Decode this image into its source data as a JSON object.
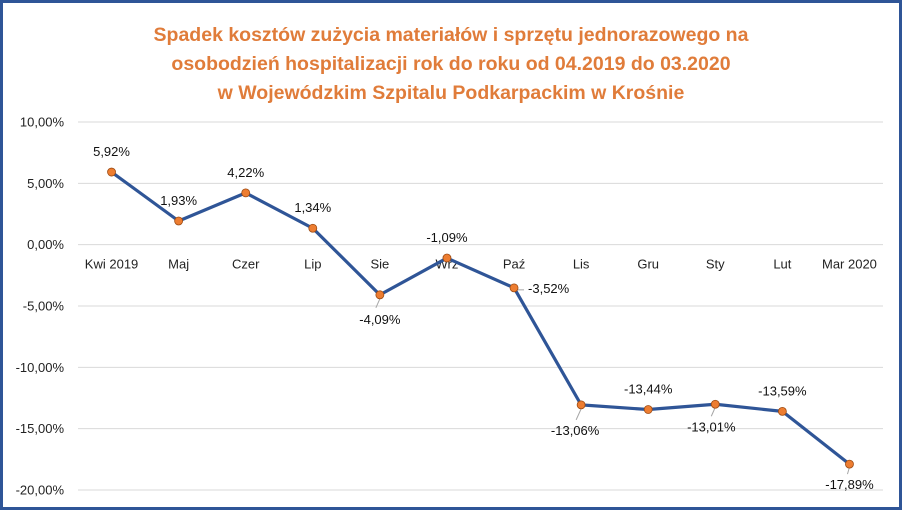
{
  "chart_data": {
    "type": "line",
    "title": [
      "Spadek kosztów zużycia materiałów i sprzętu jednorazowego na",
      "osobodzień hospitalizacji rok do roku od 04.2019 do 03.2020",
      "w Wojewódzkim Szpitalu Podkarpackim w Krośnie"
    ],
    "xlabel": "",
    "ylabel": "",
    "categories": [
      "Kwi 2019",
      "Maj",
      "Czer",
      "Lip",
      "Sie",
      "Wrz",
      "Paź",
      "Lis",
      "Gru",
      "Sty",
      "Lut",
      "Mar 2020"
    ],
    "series": [
      {
        "values": [
          5.92,
          1.93,
          4.22,
          1.34,
          -4.09,
          -1.09,
          -3.52,
          -13.06,
          -13.44,
          -13.01,
          -13.59,
          -17.89
        ],
        "data_labels": [
          "5,92%",
          "1,93%",
          "4,22%",
          "1,34%",
          "-4,09%",
          "-1,09%",
          "-3,52%",
          "-13,06%",
          "-13,44%",
          "-13,01%",
          "-13,59%",
          "-17,89%"
        ]
      }
    ],
    "ylim": [
      -20,
      10
    ],
    "yticks": [
      10,
      5,
      0,
      -5,
      -10,
      -15,
      -20
    ],
    "ytick_labels": [
      "10,00%",
      "5,00%",
      "0,00%",
      "-5,00%",
      "-10,00%",
      "-15,00%",
      "-20,00%"
    ],
    "grid": true,
    "legend": "none",
    "colors": {
      "line": "#2f5597",
      "marker": "#ed7d31",
      "title": "#e07c3a",
      "grid": "#d9d9d9",
      "border": "#2f5597"
    }
  }
}
